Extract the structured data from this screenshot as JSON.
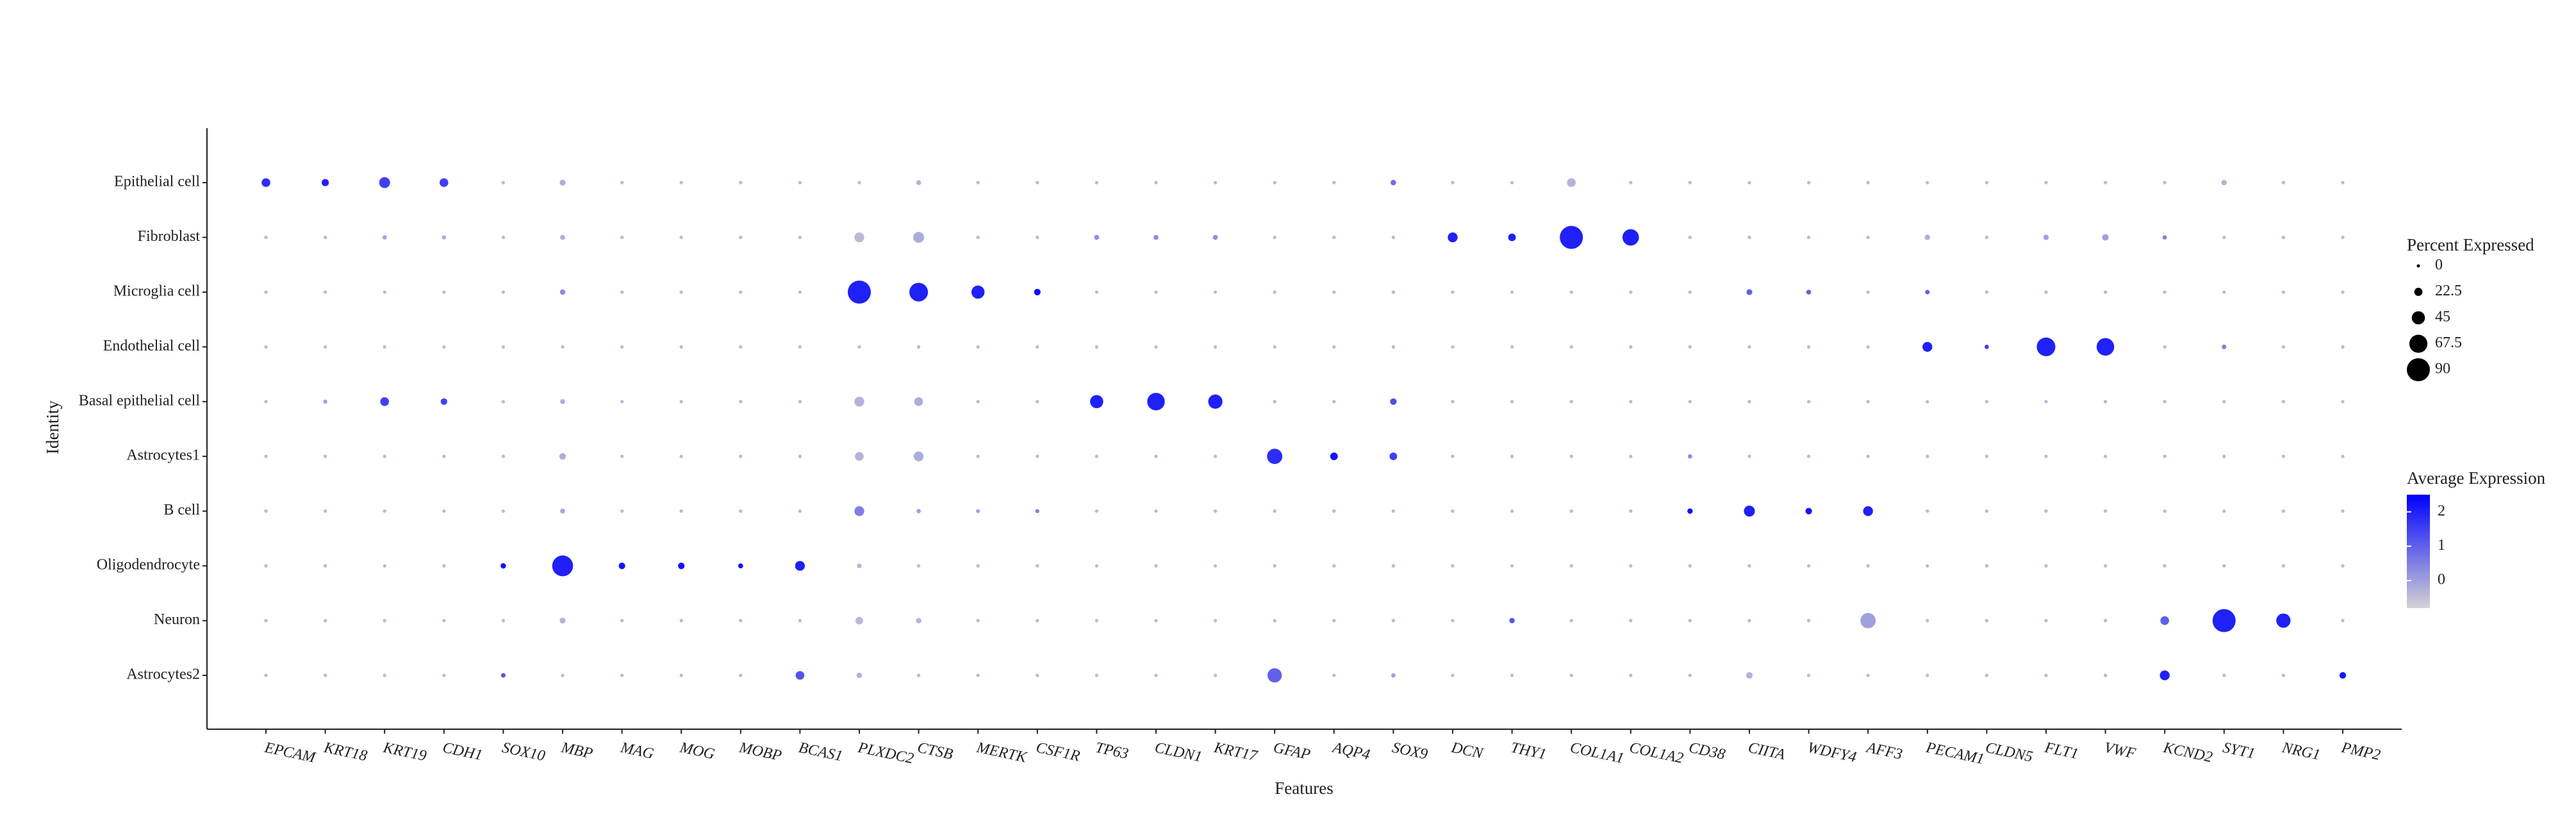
{
  "chart_data": {
    "type": "dot",
    "x_label": "Features",
    "y_label": "Identity",
    "categories": [
      "EPCAM",
      "KRT18",
      "KRT19",
      "CDH1",
      "SOX10",
      "MBP",
      "MAG",
      "MOG",
      "MOBP",
      "BCAS1",
      "PLXDC2",
      "CTSB",
      "MERTK",
      "CSF1R",
      "TP63",
      "CLDN1",
      "KRT17",
      "GFAP",
      "AQP4",
      "SOX9",
      "DCN",
      "THY1",
      "COL1A1",
      "COL1A2",
      "CD38",
      "CIITA",
      "WDFY4",
      "AFF3",
      "PECAM1",
      "CLDN5",
      "FLT1",
      "VWF",
      "KCND2",
      "SYT1",
      "NRG1",
      "PMP2"
    ],
    "rows": [
      "Epithelial cell",
      "Fibroblast",
      "Microglia cell",
      "Endothelial cell",
      "Basal epithelial cell",
      "Astrocytes1",
      "B cell",
      "Oligodendrocyte",
      "Neuron",
      "Astrocytes2"
    ],
    "percent": [
      [
        25,
        18,
        35,
        25,
        1,
        12,
        1,
        1,
        1,
        1,
        1,
        8,
        1,
        1,
        1,
        1,
        1,
        1,
        1,
        10,
        1,
        1,
        25,
        1,
        1,
        1,
        1,
        1,
        1,
        1,
        1,
        1,
        1,
        10,
        1,
        1
      ],
      [
        1,
        1,
        5,
        5,
        1,
        8,
        1,
        1,
        1,
        1,
        30,
        35,
        1,
        1,
        8,
        8,
        8,
        1,
        1,
        1,
        30,
        20,
        90,
        60,
        1,
        1,
        1,
        1,
        10,
        1,
        10,
        15,
        5,
        1,
        1,
        1
      ],
      [
        1,
        1,
        1,
        1,
        1,
        10,
        1,
        1,
        1,
        1,
        90,
        70,
        45,
        15,
        1,
        1,
        1,
        1,
        1,
        1,
        1,
        1,
        1,
        1,
        1,
        12,
        7,
        1,
        6,
        1,
        1,
        1,
        1,
        1,
        1,
        1
      ],
      [
        1,
        1,
        1,
        1,
        1,
        1,
        1,
        1,
        1,
        1,
        1,
        1,
        1,
        1,
        1,
        1,
        1,
        1,
        1,
        1,
        1,
        1,
        1,
        1,
        1,
        1,
        1,
        1,
        30,
        5,
        70,
        65,
        1,
        6,
        1,
        1
      ],
      [
        1,
        4,
        25,
        15,
        1,
        8,
        1,
        1,
        1,
        1,
        30,
        25,
        1,
        1,
        45,
        65,
        50,
        1,
        1,
        15,
        1,
        1,
        1,
        1,
        1,
        1,
        1,
        1,
        1,
        1,
        1,
        1,
        1,
        1,
        1,
        1
      ],
      [
        1,
        1,
        1,
        1,
        1,
        15,
        1,
        1,
        1,
        1,
        25,
        30,
        1,
        1,
        1,
        1,
        1,
        55,
        20,
        20,
        1,
        1,
        1,
        1,
        5,
        1,
        1,
        1,
        1,
        1,
        1,
        1,
        1,
        1,
        1,
        1
      ],
      [
        1,
        1,
        1,
        1,
        1,
        8,
        1,
        1,
        1,
        1,
        30,
        5,
        3,
        4,
        1,
        1,
        1,
        1,
        1,
        1,
        1,
        1,
        1,
        1,
        10,
        35,
        15,
        30,
        1,
        1,
        1,
        1,
        1,
        1,
        1,
        1
      ],
      [
        1,
        1,
        1,
        1,
        10,
        80,
        15,
        15,
        8,
        30,
        6,
        1,
        1,
        1,
        1,
        1,
        1,
        1,
        1,
        1,
        1,
        1,
        1,
        1,
        1,
        1,
        1,
        1,
        1,
        1,
        1,
        1,
        1,
        1,
        1,
        1
      ],
      [
        1,
        1,
        1,
        1,
        1,
        12,
        1,
        1,
        1,
        1,
        20,
        10,
        1,
        1,
        1,
        1,
        1,
        1,
        1,
        1,
        1,
        10,
        1,
        1,
        1,
        1,
        1,
        55,
        1,
        1,
        1,
        1,
        25,
        90,
        50,
        1
      ],
      [
        1,
        1,
        1,
        1,
        6,
        1,
        1,
        1,
        1,
        25,
        10,
        1,
        1,
        1,
        1,
        1,
        1,
        50,
        1,
        5,
        1,
        1,
        1,
        1,
        1,
        15,
        1,
        1,
        1,
        1,
        1,
        1,
        30,
        1,
        1,
        15
      ]
    ],
    "avg_expression": [
      [
        1.8,
        2,
        1.5,
        1.5,
        -0.4,
        -0.2,
        -0.4,
        -0.4,
        -0.4,
        -0.4,
        -0.4,
        -0.3,
        -0.4,
        -0.4,
        -0.4,
        -0.4,
        -0.4,
        -0.4,
        -0.4,
        0.8,
        -0.4,
        -0.4,
        -0.3,
        -0.4,
        -0.4,
        -0.4,
        -0.4,
        -0.4,
        -0.4,
        -0.4,
        -0.4,
        -0.4,
        -0.4,
        -0.3,
        -0.4,
        -0.4
      ],
      [
        -0.4,
        -0.4,
        0,
        -0.2,
        -0.4,
        -0.2,
        -0.4,
        -0.4,
        -0.4,
        -0.4,
        -0.4,
        -0.2,
        -0.4,
        -0.4,
        0.3,
        0.3,
        0.3,
        -0.4,
        -0.4,
        -0.4,
        2,
        2,
        2,
        2,
        -0.4,
        -0.4,
        -0.4,
        -0.4,
        -0.2,
        -0.4,
        0,
        0,
        0.5,
        -0.4,
        -0.4,
        -0.4
      ],
      [
        -0.4,
        -0.4,
        -0.4,
        -0.4,
        -0.4,
        0.3,
        -0.4,
        -0.4,
        -0.4,
        -0.4,
        2,
        2,
        2,
        2.3,
        -0.4,
        -0.4,
        -0.4,
        -0.4,
        -0.4,
        -0.4,
        -0.4,
        -0.4,
        -0.4,
        -0.4,
        -0.4,
        1,
        1,
        -0.4,
        1,
        -0.4,
        -0.4,
        -0.4,
        -0.4,
        -0.4,
        -0.4,
        -0.4
      ],
      [
        -0.4,
        -0.4,
        -0.4,
        -0.4,
        -0.4,
        -0.4,
        -0.4,
        -0.4,
        -0.4,
        -0.4,
        -0.4,
        -0.4,
        -0.4,
        -0.4,
        -0.4,
        -0.4,
        -0.4,
        -0.4,
        -0.4,
        -0.4,
        -0.4,
        -0.4,
        -0.4,
        -0.4,
        -0.4,
        -0.4,
        -0.4,
        -0.4,
        2,
        1.5,
        2,
        2,
        -0.4,
        0.5,
        -0.4,
        -0.4
      ],
      [
        -0.4,
        0,
        1.5,
        1.5,
        -0.4,
        -0.2,
        -0.4,
        -0.4,
        -0.4,
        -0.4,
        -0.3,
        -0.2,
        -0.4,
        -0.4,
        2,
        2,
        2,
        -0.4,
        -0.4,
        1.3,
        -0.4,
        -0.4,
        -0.4,
        -0.4,
        -0.4,
        -0.4,
        -0.4,
        -0.4,
        -0.4,
        -0.4,
        -0.4,
        -0.4,
        -0.4,
        -0.4,
        -0.4,
        -0.4
      ],
      [
        -0.4,
        -0.4,
        -0.4,
        -0.4,
        -0.4,
        -0.2,
        -0.4,
        -0.4,
        -0.4,
        -0.4,
        -0.3,
        -0.2,
        -0.4,
        -0.4,
        -0.4,
        -0.4,
        -0.4,
        1.8,
        2.2,
        1.5,
        -0.4,
        -0.4,
        -0.4,
        -0.4,
        0.3,
        -0.4,
        -0.4,
        -0.4,
        -0.4,
        -0.4,
        -0.4,
        -0.4,
        -0.4,
        -0.4,
        -0.4,
        -0.4
      ],
      [
        -0.4,
        -0.4,
        -0.4,
        -0.4,
        -0.4,
        -0.1,
        -0.4,
        -0.4,
        -0.4,
        -0.4,
        0.5,
        0,
        0,
        0.5,
        -0.4,
        -0.4,
        -0.4,
        -0.4,
        -0.4,
        -0.4,
        -0.4,
        -0.4,
        -0.4,
        -0.4,
        2.2,
        2,
        2.2,
        2,
        -0.4,
        -0.4,
        -0.4,
        -0.4,
        -0.4,
        -0.4,
        -0.4,
        -0.4
      ],
      [
        -0.4,
        -0.4,
        -0.4,
        -0.4,
        2.2,
        2,
        2.2,
        2.2,
        2.2,
        2,
        -0.3,
        -0.4,
        -0.4,
        -0.4,
        -0.4,
        -0.4,
        -0.4,
        -0.4,
        -0.4,
        -0.4,
        -0.4,
        -0.4,
        -0.4,
        -0.4,
        -0.4,
        -0.4,
        -0.4,
        -0.4,
        -0.4,
        -0.4,
        -0.4,
        -0.4,
        -0.4,
        -0.4,
        -0.4,
        -0.4
      ],
      [
        -0.4,
        -0.4,
        -0.4,
        -0.4,
        -0.4,
        -0.3,
        -0.4,
        -0.4,
        -0.4,
        -0.4,
        -0.4,
        -0.3,
        -0.4,
        -0.4,
        -0.4,
        -0.4,
        -0.4,
        -0.4,
        -0.4,
        -0.4,
        -0.4,
        1.2,
        -0.4,
        -0.4,
        -0.4,
        -0.4,
        -0.4,
        0,
        -0.4,
        -0.4,
        -0.4,
        -0.4,
        1,
        2,
        2,
        -0.4
      ],
      [
        -0.4,
        -0.4,
        -0.4,
        -0.4,
        1.2,
        -0.4,
        -0.4,
        -0.4,
        -0.4,
        1.2,
        -0.3,
        -0.4,
        -0.4,
        -0.4,
        -0.4,
        -0.4,
        -0.4,
        1,
        -0.4,
        0,
        -0.4,
        -0.4,
        -0.4,
        -0.4,
        -0.4,
        -0.3,
        -0.4,
        -0.4,
        -0.4,
        -0.4,
        -0.4,
        -0.4,
        2,
        -0.4,
        -0.4,
        2.2
      ]
    ],
    "size_legend": {
      "title": "Percent Expressed",
      "ticks": [
        0,
        22.5,
        45,
        67.5,
        90
      ]
    },
    "color_legend": {
      "title": "Average Expression",
      "lim": [
        -0.8,
        2.5
      ],
      "ticks": [
        0,
        1,
        2
      ],
      "low_color": "#d3d3d3",
      "high_color": "#0000ff"
    }
  }
}
